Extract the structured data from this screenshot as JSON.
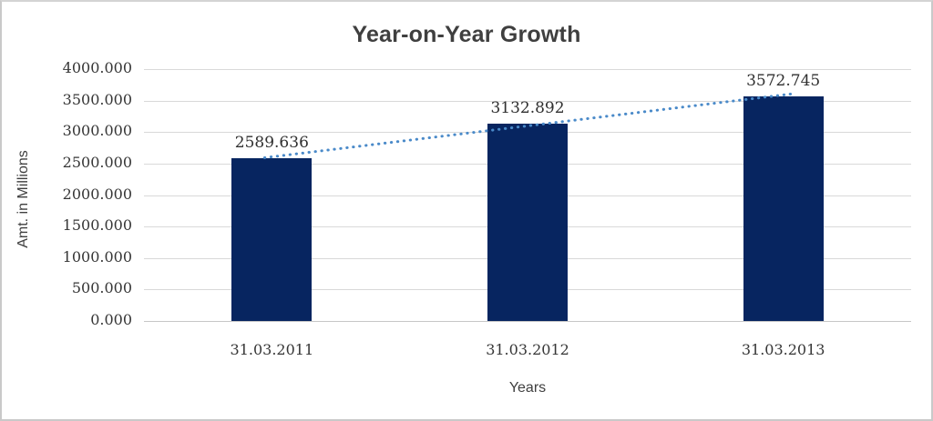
{
  "chart_data": {
    "type": "bar",
    "title": "Year-on-Year Growth",
    "xlabel": "Years",
    "ylabel": "Amt. in Millions",
    "categories": [
      "31.03.2011",
      "31.03.2012",
      "31.03.2013"
    ],
    "values": [
      2589.636,
      3132.892,
      3572.745
    ],
    "data_labels": [
      "2589.636",
      "3132.892",
      "3572.745"
    ],
    "ylim": [
      0,
      4000
    ],
    "ytick_step": 500,
    "ytick_decimals": 3,
    "grid": "horizontal",
    "legend": "none",
    "trendline": {
      "type": "linear",
      "style": "dotted",
      "color": "#4a8ac9"
    },
    "colors": {
      "bar": "#072560",
      "gridline": "#d9d9d9",
      "title_text": "#3f3f3f",
      "tick_text": "#363636",
      "frame_border": "#c9c9c9",
      "background": "#ffffff"
    }
  }
}
